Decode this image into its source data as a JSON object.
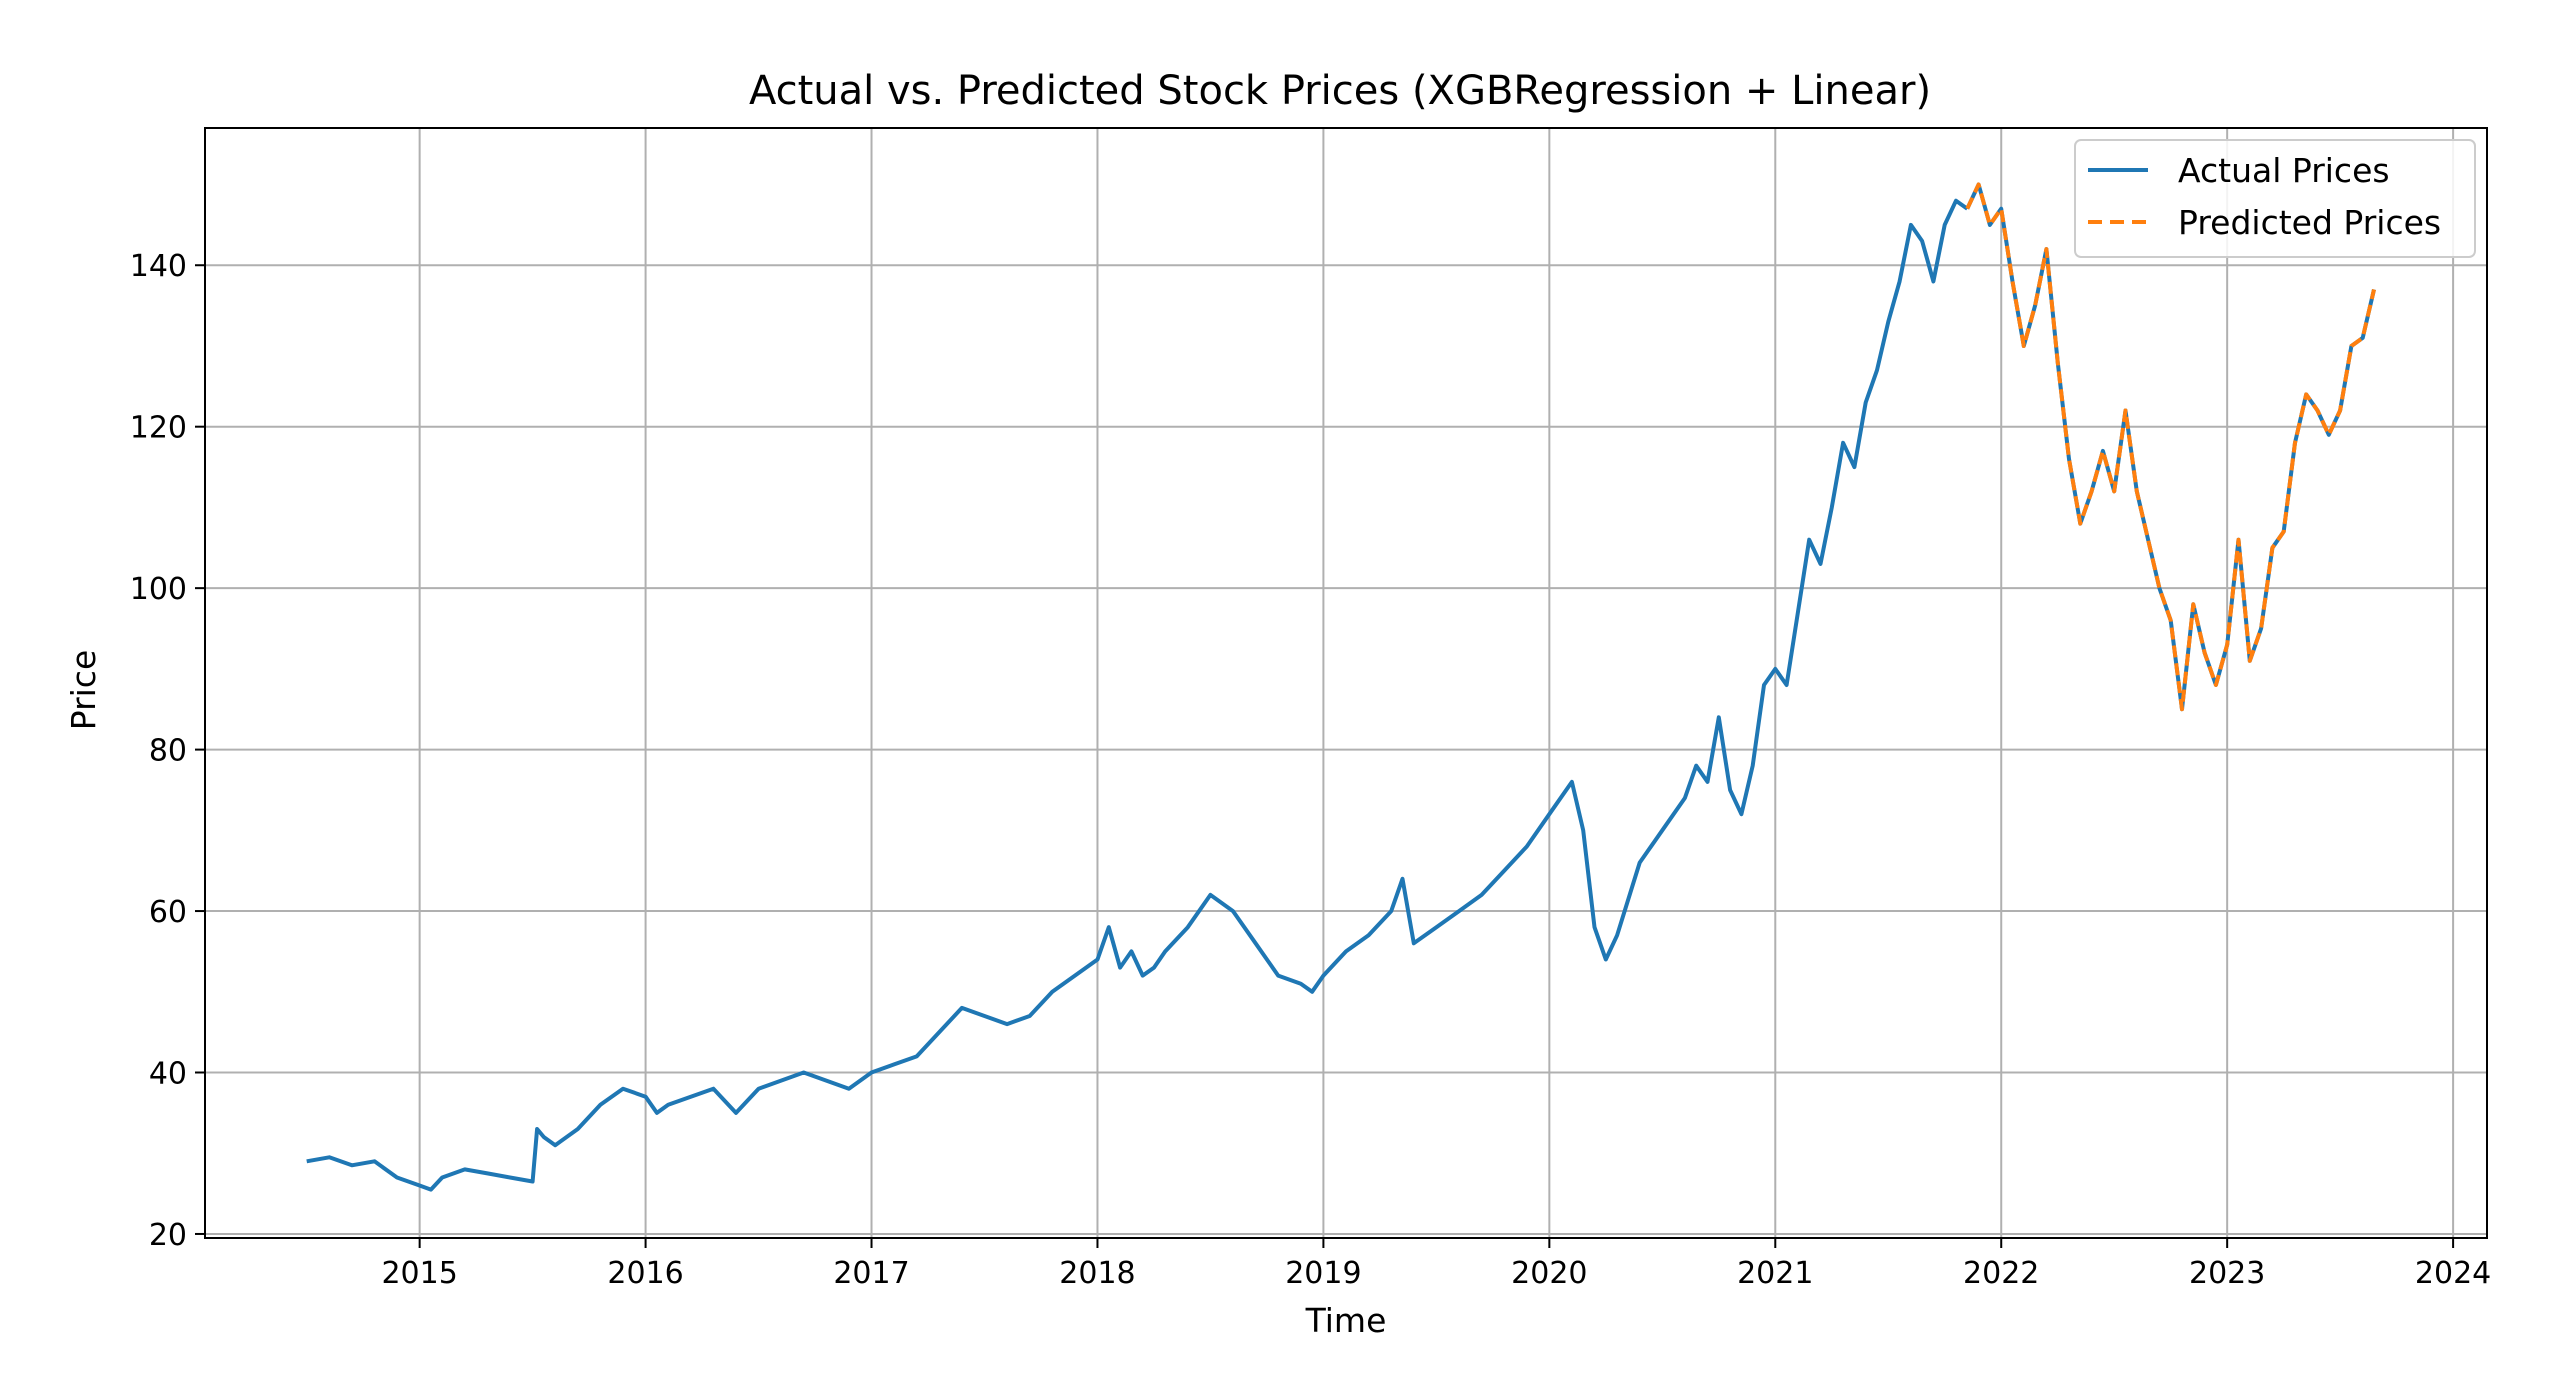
{
  "chart_data": {
    "type": "line",
    "title": "Actual vs. Predicted Stock Prices (XGBRegression + Linear)",
    "xlabel": "Time",
    "ylabel": "Price",
    "xlim": [
      2014.05,
      2024.15
    ],
    "ylim": [
      19.5,
      157
    ],
    "x_ticks": [
      2015,
      2016,
      2017,
      2018,
      2019,
      2020,
      2021,
      2022,
      2023,
      2024
    ],
    "x_tick_labels": [
      "2015",
      "2016",
      "2017",
      "2018",
      "2019",
      "2020",
      "2021",
      "2022",
      "2023",
      "2024"
    ],
    "y_ticks": [
      20,
      40,
      60,
      80,
      100,
      120,
      140
    ],
    "y_tick_labels": [
      "20",
      "40",
      "60",
      "80",
      "100",
      "120",
      "140"
    ],
    "grid": true,
    "legend_position": "top-right",
    "colors": {
      "actual": "#1f77b4",
      "predicted": "#ff7f0e"
    },
    "series": [
      {
        "name": "Actual Prices",
        "style": "solid",
        "x": [
          2014.5,
          2014.6,
          2014.7,
          2014.8,
          2014.9,
          2014.95,
          2015.0,
          2015.05,
          2015.1,
          2015.2,
          2015.3,
          2015.4,
          2015.5,
          2015.52,
          2015.55,
          2015.6,
          2015.7,
          2015.8,
          2015.9,
          2016.0,
          2016.05,
          2016.1,
          2016.2,
          2016.3,
          2016.4,
          2016.5,
          2016.6,
          2016.7,
          2016.8,
          2016.9,
          2017.0,
          2017.1,
          2017.2,
          2017.3,
          2017.4,
          2017.5,
          2017.6,
          2017.7,
          2017.8,
          2017.9,
          2018.0,
          2018.05,
          2018.1,
          2018.15,
          2018.2,
          2018.25,
          2018.3,
          2018.4,
          2018.5,
          2018.6,
          2018.7,
          2018.8,
          2018.9,
          2018.95,
          2019.0,
          2019.1,
          2019.2,
          2019.3,
          2019.35,
          2019.4,
          2019.5,
          2019.6,
          2019.7,
          2019.8,
          2019.9,
          2020.0,
          2020.1,
          2020.15,
          2020.2,
          2020.25,
          2020.3,
          2020.4,
          2020.5,
          2020.6,
          2020.65,
          2020.7,
          2020.75,
          2020.8,
          2020.85,
          2020.9,
          2020.95,
          2021.0,
          2021.05,
          2021.1,
          2021.15,
          2021.2,
          2021.25,
          2021.3,
          2021.35,
          2021.4,
          2021.45,
          2021.5,
          2021.55,
          2021.6,
          2021.65,
          2021.7,
          2021.75,
          2021.8,
          2021.85
        ],
        "values": [
          29,
          29.5,
          28.5,
          29,
          27,
          26.5,
          26,
          25.5,
          27,
          28,
          27.5,
          27,
          26.5,
          33,
          32,
          31,
          33,
          36,
          38,
          37,
          35,
          36,
          37,
          38,
          35,
          38,
          39,
          40,
          39,
          38,
          40,
          41,
          42,
          45,
          48,
          47,
          46,
          47,
          50,
          52,
          54,
          58,
          53,
          55,
          52,
          53,
          55,
          58,
          62,
          60,
          56,
          52,
          51,
          50,
          52,
          55,
          57,
          60,
          64,
          56,
          58,
          60,
          62,
          65,
          68,
          72,
          76,
          70,
          58,
          54,
          57,
          66,
          70,
          74,
          78,
          76,
          84,
          75,
          72,
          78,
          88,
          90,
          88,
          97,
          106,
          103,
          110,
          118,
          115,
          123,
          127,
          133,
          138,
          145,
          143,
          138,
          145,
          148,
          147
        ]
      },
      {
        "name": "Predicted Prices",
        "style": "dashed",
        "x": [
          2021.85,
          2021.9,
          2021.95,
          2022.0,
          2022.05,
          2022.1,
          2022.15,
          2022.2,
          2022.25,
          2022.3,
          2022.35,
          2022.4,
          2022.45,
          2022.5,
          2022.55,
          2022.6,
          2022.65,
          2022.7,
          2022.75,
          2022.8,
          2022.85,
          2022.9,
          2022.95,
          2023.0,
          2023.05,
          2023.1,
          2023.15,
          2023.2,
          2023.25,
          2023.3,
          2023.35,
          2023.4,
          2023.45,
          2023.5,
          2023.55,
          2023.6,
          2023.65
        ],
        "values": [
          147,
          150,
          145,
          147,
          138,
          130,
          135,
          142,
          128,
          116,
          108,
          112,
          117,
          112,
          122,
          112,
          106,
          100,
          96,
          85,
          98,
          92,
          88,
          93,
          106,
          91,
          95,
          105,
          107,
          118,
          124,
          122,
          119,
          122,
          130,
          131,
          137
        ]
      }
    ]
  }
}
